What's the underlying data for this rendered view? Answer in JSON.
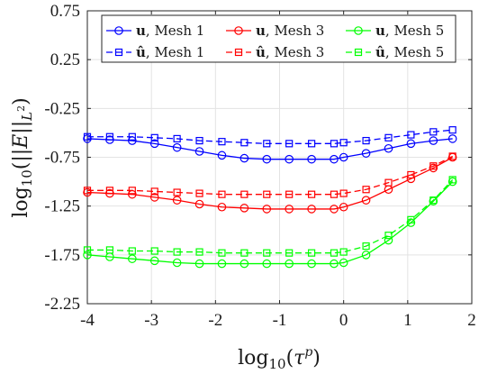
{
  "chart_data": {
    "type": "line",
    "title": "",
    "xlabel": "log10(τ^p)",
    "ylabel": "log10(||E||L²)",
    "xlim": [
      -4,
      2
    ],
    "ylim": [
      -2.25,
      0.75
    ],
    "xticks": [
      -4,
      -3,
      -2,
      -1,
      0,
      1,
      2
    ],
    "yticks": [
      -2.25,
      -1.75,
      -1.25,
      -0.75,
      -0.25,
      0.25,
      0.75
    ],
    "xtick_labels": [
      "-4",
      "-3",
      "-2",
      "-1",
      "0",
      "1",
      "2"
    ],
    "ytick_labels": [
      "-2.25",
      "-1.75",
      "-1.25",
      "-0.75",
      "-0.25",
      "0.25",
      "0.75"
    ],
    "grid": true,
    "legend": {
      "location": "top",
      "columns": 3
    },
    "x": [
      -4.0,
      -3.65,
      -3.3,
      -2.95,
      -2.6,
      -2.25,
      -1.9,
      -1.55,
      -1.2,
      -0.85,
      -0.5,
      -0.15,
      0.0,
      0.35,
      0.7,
      1.05,
      1.4,
      1.7
    ],
    "series": [
      {
        "name": "u, Mesh 1",
        "bold": "u",
        "suffix": ", Mesh 1",
        "hat": false,
        "color": "#0000ff",
        "dash": false,
        "marker": "circle",
        "values": [
          -0.56,
          -0.57,
          -0.58,
          -0.61,
          -0.65,
          -0.69,
          -0.73,
          -0.76,
          -0.77,
          -0.77,
          -0.77,
          -0.77,
          -0.75,
          -0.71,
          -0.66,
          -0.61,
          -0.58,
          -0.56
        ]
      },
      {
        "name": "u, Mesh 3",
        "bold": "u",
        "suffix": ", Mesh 3",
        "hat": false,
        "color": "#ff0000",
        "dash": false,
        "marker": "circle",
        "values": [
          -1.11,
          -1.12,
          -1.13,
          -1.16,
          -1.19,
          -1.23,
          -1.26,
          -1.27,
          -1.28,
          -1.28,
          -1.28,
          -1.28,
          -1.26,
          -1.19,
          -1.08,
          -0.97,
          -0.86,
          -0.75
        ]
      },
      {
        "name": "u, Mesh 5",
        "bold": "u",
        "suffix": ", Mesh 5",
        "hat": false,
        "color": "#00ff00",
        "dash": false,
        "marker": "circle",
        "values": [
          -1.75,
          -1.77,
          -1.79,
          -1.81,
          -1.83,
          -1.84,
          -1.84,
          -1.84,
          -1.84,
          -1.84,
          -1.84,
          -1.84,
          -1.83,
          -1.75,
          -1.6,
          -1.42,
          -1.2,
          -1.0
        ]
      },
      {
        "name": "û, Mesh 1",
        "bold": "û",
        "suffix": ", Mesh 1",
        "hat": true,
        "color": "#0000ff",
        "dash": true,
        "marker": "square",
        "values": [
          -0.54,
          -0.54,
          -0.54,
          -0.55,
          -0.56,
          -0.58,
          -0.59,
          -0.6,
          -0.61,
          -0.61,
          -0.61,
          -0.61,
          -0.6,
          -0.58,
          -0.55,
          -0.52,
          -0.49,
          -0.47
        ]
      },
      {
        "name": "û, Mesh 3",
        "bold": "û",
        "suffix": ", Mesh 3",
        "hat": true,
        "color": "#ff0000",
        "dash": true,
        "marker": "square",
        "values": [
          -1.09,
          -1.09,
          -1.09,
          -1.1,
          -1.11,
          -1.12,
          -1.13,
          -1.13,
          -1.13,
          -1.13,
          -1.13,
          -1.13,
          -1.12,
          -1.08,
          -1.01,
          -0.93,
          -0.84,
          -0.74
        ]
      },
      {
        "name": "û, Mesh 5",
        "bold": "û",
        "suffix": ", Mesh 5",
        "hat": true,
        "color": "#00ff00",
        "dash": true,
        "marker": "square",
        "values": [
          -1.7,
          -1.7,
          -1.71,
          -1.71,
          -1.72,
          -1.72,
          -1.73,
          -1.73,
          -1.73,
          -1.73,
          -1.73,
          -1.73,
          -1.72,
          -1.66,
          -1.55,
          -1.39,
          -1.19,
          -0.98
        ]
      }
    ]
  }
}
